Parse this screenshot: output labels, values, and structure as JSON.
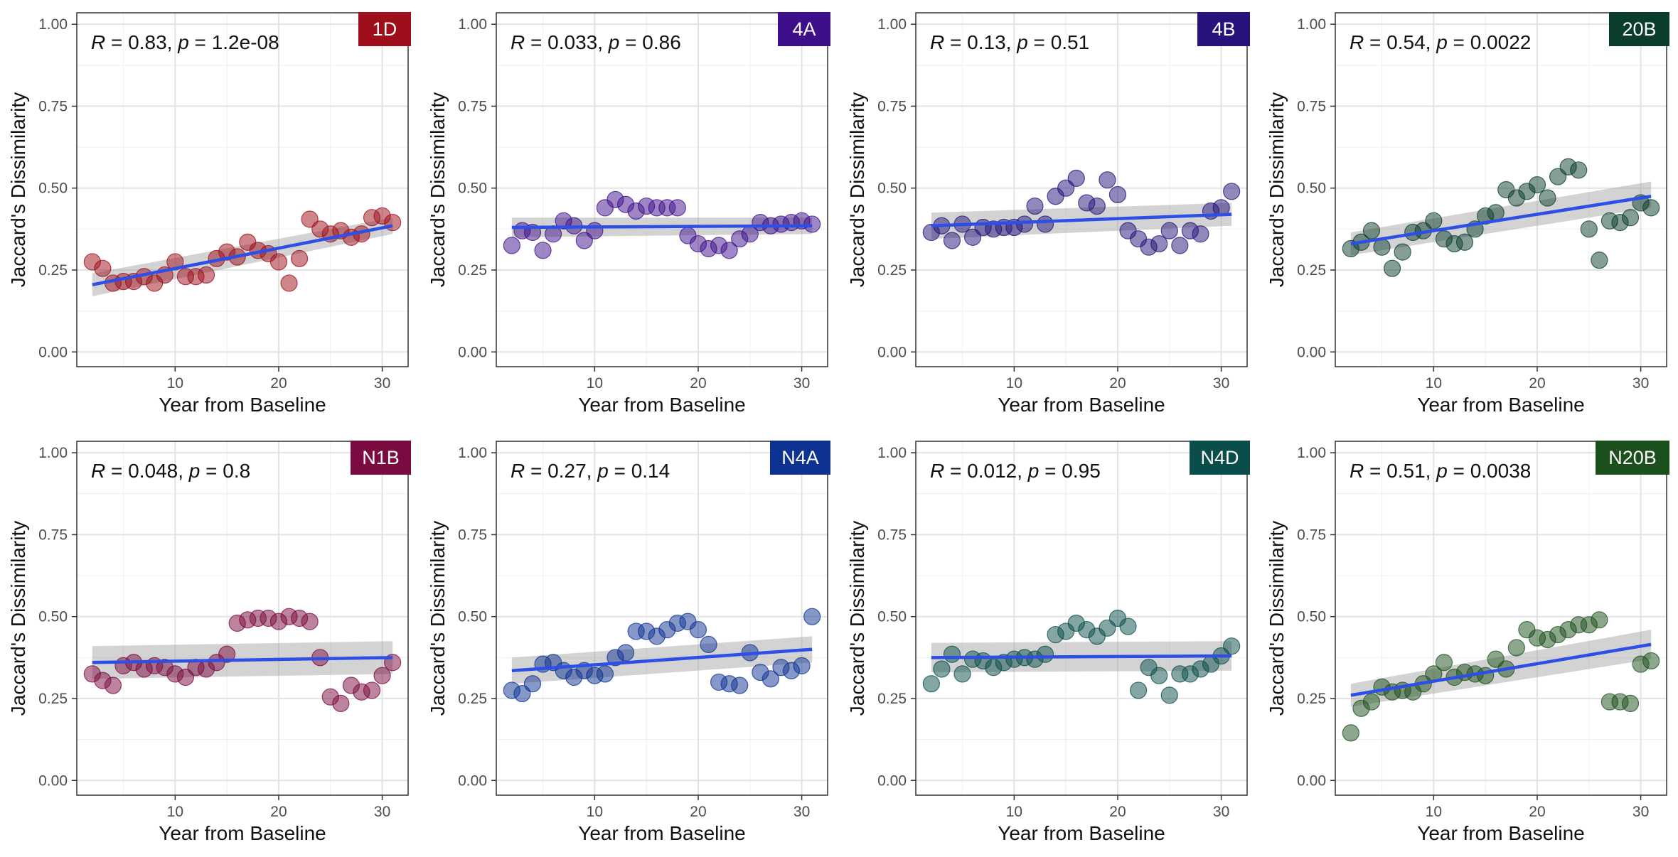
{
  "chart_data": [
    {
      "type": "scatter",
      "panel_label": "1D",
      "color": "#9e0e1b",
      "annotation": {
        "r": "0.83",
        "p": "1.2e-08"
      },
      "xlabel": "Year from Baseline",
      "ylabel": "Jaccard's Dissimilarity",
      "xlim": [
        0.5,
        32.5
      ],
      "ylim": [
        -0.045,
        1.035
      ],
      "xticks": [
        10,
        20,
        30
      ],
      "yticks": [
        "0.00",
        "0.25",
        "0.50",
        "0.75",
        "1.00"
      ],
      "grid": true,
      "x": [
        2,
        3,
        4,
        5,
        6,
        7,
        8,
        9,
        10,
        11,
        12,
        13,
        14,
        15,
        16,
        17,
        18,
        19,
        20,
        21,
        22,
        23,
        24,
        25,
        26,
        27,
        28,
        29,
        30,
        31
      ],
      "y": [
        0.275,
        0.255,
        0.21,
        0.215,
        0.215,
        0.23,
        0.21,
        0.235,
        0.275,
        0.23,
        0.23,
        0.235,
        0.285,
        0.305,
        0.29,
        0.335,
        0.31,
        0.3,
        0.275,
        0.21,
        0.285,
        0.405,
        0.375,
        0.36,
        0.37,
        0.35,
        0.36,
        0.41,
        0.415,
        0.395
      ],
      "fit": {
        "x": [
          2,
          31
        ],
        "y": [
          0.205,
          0.385
        ],
        "ci_low": [
          0.17,
          0.36
        ],
        "ci_high": [
          0.24,
          0.41
        ]
      }
    },
    {
      "type": "scatter",
      "panel_label": "4A",
      "color": "#3d0f8a",
      "annotation": {
        "r": "0.033",
        "p": "0.86"
      },
      "xlabel": "Year from Baseline",
      "ylabel": "Jaccard's Dissimilarity",
      "xlim": [
        0.5,
        32.5
      ],
      "ylim": [
        -0.045,
        1.035
      ],
      "xticks": [
        10,
        20,
        30
      ],
      "yticks": [
        "0.00",
        "0.25",
        "0.50",
        "0.75",
        "1.00"
      ],
      "grid": true,
      "x": [
        2,
        3,
        4,
        5,
        6,
        7,
        8,
        9,
        10,
        11,
        12,
        13,
        14,
        15,
        16,
        17,
        18,
        19,
        20,
        21,
        22,
        23,
        24,
        25,
        26,
        27,
        28,
        29,
        30,
        31
      ],
      "y": [
        0.325,
        0.37,
        0.365,
        0.31,
        0.36,
        0.4,
        0.385,
        0.34,
        0.37,
        0.44,
        0.465,
        0.45,
        0.43,
        0.445,
        0.44,
        0.44,
        0.44,
        0.355,
        0.33,
        0.315,
        0.325,
        0.31,
        0.345,
        0.36,
        0.395,
        0.385,
        0.39,
        0.395,
        0.4,
        0.39
      ],
      "fit": {
        "x": [
          2,
          31
        ],
        "y": [
          0.38,
          0.385
        ],
        "ci_low": [
          0.35,
          0.36
        ],
        "ci_high": [
          0.41,
          0.41
        ]
      }
    },
    {
      "type": "scatter",
      "panel_label": "4B",
      "color": "#26127a",
      "annotation": {
        "r": "0.13",
        "p": "0.51"
      },
      "xlabel": "Year from Baseline",
      "ylabel": "Jaccard's Dissimilarity",
      "xlim": [
        0.5,
        32.5
      ],
      "ylim": [
        -0.045,
        1.035
      ],
      "xticks": [
        10,
        20,
        30
      ],
      "yticks": [
        "0.00",
        "0.25",
        "0.50",
        "0.75",
        "1.00"
      ],
      "grid": true,
      "x": [
        2,
        3,
        4,
        5,
        6,
        7,
        8,
        9,
        10,
        11,
        12,
        13,
        14,
        15,
        16,
        17,
        18,
        19,
        20,
        21,
        22,
        23,
        24,
        25,
        26,
        27,
        28,
        29,
        30,
        31
      ],
      "y": [
        0.365,
        0.385,
        0.34,
        0.39,
        0.35,
        0.38,
        0.375,
        0.38,
        0.38,
        0.39,
        0.445,
        0.39,
        0.475,
        0.5,
        0.53,
        0.455,
        0.445,
        0.525,
        0.48,
        0.37,
        0.345,
        0.32,
        0.33,
        0.37,
        0.325,
        0.37,
        0.36,
        0.43,
        0.44,
        0.49
      ],
      "fit": {
        "x": [
          2,
          31
        ],
        "y": [
          0.385,
          0.42
        ],
        "ci_low": [
          0.345,
          0.385
        ],
        "ci_high": [
          0.425,
          0.455
        ]
      }
    },
    {
      "type": "scatter",
      "panel_label": "20B",
      "color": "#0b3d2e",
      "annotation": {
        "r": "0.54",
        "p": "0.0022"
      },
      "xlabel": "Year from Baseline",
      "ylabel": "Jaccard's Dissimilarity",
      "xlim": [
        0.5,
        32.5
      ],
      "ylim": [
        -0.045,
        1.035
      ],
      "xticks": [
        10,
        20,
        30
      ],
      "yticks": [
        "0.00",
        "0.25",
        "0.50",
        "0.75",
        "1.00"
      ],
      "grid": true,
      "x": [
        2,
        3,
        4,
        5,
        6,
        7,
        8,
        9,
        10,
        11,
        12,
        13,
        14,
        15,
        16,
        17,
        18,
        19,
        20,
        21,
        22,
        23,
        24,
        25,
        26,
        27,
        28,
        29,
        30,
        31
      ],
      "y": [
        0.315,
        0.335,
        0.37,
        0.32,
        0.255,
        0.305,
        0.365,
        0.37,
        0.4,
        0.345,
        0.33,
        0.335,
        0.375,
        0.415,
        0.425,
        0.495,
        0.47,
        0.49,
        0.51,
        0.47,
        0.535,
        0.565,
        0.555,
        0.375,
        0.28,
        0.4,
        0.395,
        0.41,
        0.455,
        0.44
      ],
      "fit": {
        "x": [
          2,
          31
        ],
        "y": [
          0.33,
          0.475
        ],
        "ci_low": [
          0.295,
          0.44
        ],
        "ci_high": [
          0.365,
          0.52
        ]
      }
    },
    {
      "type": "scatter",
      "panel_label": "N1B",
      "color": "#7a0a3f",
      "annotation": {
        "r": "0.048",
        "p": "0.8"
      },
      "xlabel": "Year from Baseline",
      "ylabel": "Jaccard's Dissimilarity",
      "xlim": [
        0.5,
        32.5
      ],
      "ylim": [
        -0.045,
        1.035
      ],
      "xticks": [
        10,
        20,
        30
      ],
      "yticks": [
        "0.00",
        "0.25",
        "0.50",
        "0.75",
        "1.00"
      ],
      "grid": true,
      "x": [
        2,
        3,
        4,
        5,
        6,
        7,
        8,
        9,
        10,
        11,
        12,
        13,
        14,
        15,
        16,
        17,
        18,
        19,
        20,
        21,
        22,
        23,
        24,
        25,
        26,
        27,
        28,
        29,
        30,
        31
      ],
      "y": [
        0.325,
        0.305,
        0.29,
        0.35,
        0.36,
        0.34,
        0.35,
        0.345,
        0.325,
        0.315,
        0.345,
        0.34,
        0.36,
        0.385,
        0.48,
        0.49,
        0.495,
        0.495,
        0.485,
        0.5,
        0.495,
        0.485,
        0.375,
        0.255,
        0.235,
        0.29,
        0.27,
        0.275,
        0.32,
        0.36
      ],
      "fit": {
        "x": [
          2,
          31
        ],
        "y": [
          0.36,
          0.375
        ],
        "ci_low": [
          0.31,
          0.325
        ],
        "ci_high": [
          0.41,
          0.425
        ]
      }
    },
    {
      "type": "scatter",
      "panel_label": "N4A",
      "color": "#0e3291",
      "annotation": {
        "r": "0.27",
        "p": "0.14"
      },
      "xlabel": "Year from Baseline",
      "ylabel": "Jaccard's Dissimilarity",
      "xlim": [
        0.5,
        32.5
      ],
      "ylim": [
        -0.045,
        1.035
      ],
      "xticks": [
        10,
        20,
        30
      ],
      "yticks": [
        "0.00",
        "0.25",
        "0.50",
        "0.75",
        "1.00"
      ],
      "grid": true,
      "x": [
        2,
        3,
        4,
        5,
        6,
        7,
        8,
        9,
        10,
        11,
        12,
        13,
        14,
        15,
        16,
        17,
        18,
        19,
        20,
        21,
        22,
        23,
        24,
        25,
        26,
        27,
        28,
        29,
        30,
        31
      ],
      "y": [
        0.275,
        0.265,
        0.295,
        0.355,
        0.36,
        0.335,
        0.315,
        0.335,
        0.32,
        0.325,
        0.375,
        0.39,
        0.455,
        0.455,
        0.44,
        0.46,
        0.48,
        0.485,
        0.46,
        0.415,
        0.3,
        0.295,
        0.29,
        0.39,
        0.33,
        0.31,
        0.345,
        0.335,
        0.35,
        0.5
      ],
      "fit": {
        "x": [
          2,
          31
        ],
        "y": [
          0.335,
          0.4
        ],
        "ci_low": [
          0.295,
          0.36
        ],
        "ci_high": [
          0.375,
          0.44
        ]
      }
    },
    {
      "type": "scatter",
      "panel_label": "N4D",
      "color": "#0a4d4a",
      "annotation": {
        "r": "0.012",
        "p": "0.95"
      },
      "xlabel": "Year from Baseline",
      "ylabel": "Jaccard's Dissimilarity",
      "xlim": [
        0.5,
        32.5
      ],
      "ylim": [
        -0.045,
        1.035
      ],
      "xticks": [
        10,
        20,
        30
      ],
      "yticks": [
        "0.00",
        "0.25",
        "0.50",
        "0.75",
        "1.00"
      ],
      "grid": true,
      "x": [
        2,
        3,
        4,
        5,
        6,
        7,
        8,
        9,
        10,
        11,
        12,
        13,
        14,
        15,
        16,
        17,
        18,
        19,
        20,
        21,
        22,
        23,
        24,
        25,
        26,
        27,
        28,
        29,
        30,
        31
      ],
      "y": [
        0.295,
        0.34,
        0.385,
        0.325,
        0.37,
        0.365,
        0.345,
        0.36,
        0.37,
        0.375,
        0.37,
        0.385,
        0.445,
        0.455,
        0.48,
        0.46,
        0.44,
        0.465,
        0.495,
        0.47,
        0.275,
        0.345,
        0.32,
        0.26,
        0.325,
        0.325,
        0.34,
        0.355,
        0.38,
        0.41
      ],
      "fit": {
        "x": [
          2,
          31
        ],
        "y": [
          0.375,
          0.38
        ],
        "ci_low": [
          0.33,
          0.335
        ],
        "ci_high": [
          0.42,
          0.425
        ]
      }
    },
    {
      "type": "scatter",
      "panel_label": "N20B",
      "color": "#1b4f1c",
      "annotation": {
        "r": "0.51",
        "p": "0.0038"
      },
      "xlabel": "Year from Baseline",
      "ylabel": "Jaccard's Dissimilarity",
      "xlim": [
        0.5,
        32.5
      ],
      "ylim": [
        -0.045,
        1.035
      ],
      "xticks": [
        10,
        20,
        30
      ],
      "yticks": [
        "0.00",
        "0.25",
        "0.50",
        "0.75",
        "1.00"
      ],
      "grid": true,
      "x": [
        2,
        3,
        4,
        5,
        6,
        7,
        8,
        9,
        10,
        11,
        12,
        13,
        14,
        15,
        16,
        17,
        18,
        19,
        20,
        21,
        22,
        23,
        24,
        25,
        26,
        27,
        28,
        29,
        30,
        31
      ],
      "y": [
        0.145,
        0.22,
        0.24,
        0.285,
        0.27,
        0.275,
        0.27,
        0.295,
        0.325,
        0.36,
        0.315,
        0.33,
        0.325,
        0.32,
        0.37,
        0.34,
        0.405,
        0.46,
        0.435,
        0.43,
        0.445,
        0.46,
        0.475,
        0.475,
        0.49,
        0.24,
        0.24,
        0.235,
        0.355,
        0.365
      ],
      "fit": {
        "x": [
          2,
          31
        ],
        "y": [
          0.26,
          0.415
        ],
        "ci_low": [
          0.225,
          0.37
        ],
        "ci_high": [
          0.295,
          0.46
        ]
      }
    }
  ]
}
